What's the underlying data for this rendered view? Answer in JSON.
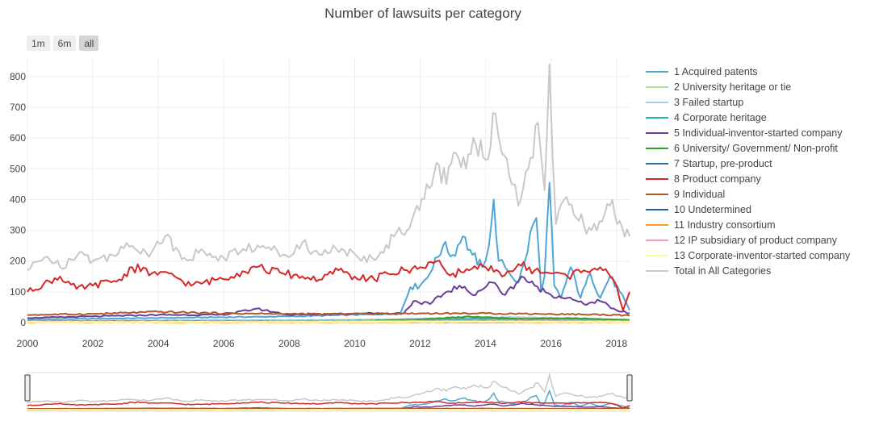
{
  "title": "Number of lawsuits per category",
  "range_buttons": [
    {
      "label": "1m",
      "active": false
    },
    {
      "label": "6m",
      "active": false
    },
    {
      "label": "all",
      "active": true
    }
  ],
  "chart_data": {
    "type": "line",
    "title": "Number of lawsuits per category",
    "xlabel": "",
    "ylabel": "",
    "x_range": [
      2000,
      2018.4
    ],
    "ylim": [
      0,
      860
    ],
    "x_ticks": [
      2000,
      2002,
      2004,
      2006,
      2008,
      2010,
      2012,
      2014,
      2016,
      2018
    ],
    "y_ticks": [
      0,
      100,
      200,
      300,
      400,
      500,
      600,
      700,
      800
    ],
    "grid": true,
    "legend_position": "right",
    "has_range_slider": true,
    "series": [
      {
        "name": "1 Acquired patents",
        "color": "#4fa6d3",
        "points": [
          [
            2000,
            10
          ],
          [
            2004,
            15
          ],
          [
            2008,
            20
          ],
          [
            2010,
            25
          ],
          [
            2011.4,
            30
          ],
          [
            2011.7,
            115
          ],
          [
            2012,
            120
          ],
          [
            2012.3,
            160
          ],
          [
            2012.7,
            250
          ],
          [
            2013,
            220
          ],
          [
            2013.3,
            280
          ],
          [
            2013.6,
            220
          ],
          [
            2013.9,
            180
          ],
          [
            2014.1,
            250
          ],
          [
            2014.25,
            400
          ],
          [
            2014.4,
            200
          ],
          [
            2014.6,
            180
          ],
          [
            2014.8,
            150
          ],
          [
            2015,
            130
          ],
          [
            2015.2,
            200
          ],
          [
            2015.45,
            320
          ],
          [
            2015.55,
            340
          ],
          [
            2015.7,
            100
          ],
          [
            2015.8,
            150
          ],
          [
            2015.95,
            455
          ],
          [
            2016.1,
            120
          ],
          [
            2016.3,
            80
          ],
          [
            2016.6,
            180
          ],
          [
            2016.9,
            80
          ],
          [
            2017.2,
            160
          ],
          [
            2017.5,
            80
          ],
          [
            2017.8,
            150
          ],
          [
            2018.1,
            100
          ],
          [
            2018.4,
            40
          ]
        ]
      },
      {
        "name": "2 University heritage or tie",
        "color": "#b2df8a",
        "points": [
          [
            2000,
            3
          ],
          [
            2005,
            4
          ],
          [
            2010,
            5
          ],
          [
            2012,
            8
          ],
          [
            2014,
            10
          ],
          [
            2016,
            8
          ],
          [
            2018.4,
            6
          ]
        ]
      },
      {
        "name": "3 Failed startup",
        "color": "#a6cee3",
        "points": [
          [
            2000,
            5
          ],
          [
            2004,
            8
          ],
          [
            2008,
            8
          ],
          [
            2011,
            10
          ],
          [
            2013,
            15
          ],
          [
            2015,
            18
          ],
          [
            2016,
            15
          ],
          [
            2018.4,
            10
          ]
        ]
      },
      {
        "name": "4 Corporate heritage",
        "color": "#26b3b3",
        "points": [
          [
            2000,
            4
          ],
          [
            2005,
            5
          ],
          [
            2010,
            6
          ],
          [
            2012,
            10
          ],
          [
            2014,
            12
          ],
          [
            2016,
            10
          ],
          [
            2018.4,
            8
          ]
        ]
      },
      {
        "name": "5 Individual-inventor-started company",
        "color": "#6a3d9a",
        "points": [
          [
            2000,
            15
          ],
          [
            2002,
            20
          ],
          [
            2004,
            25
          ],
          [
            2006,
            25
          ],
          [
            2007,
            45
          ],
          [
            2008,
            25
          ],
          [
            2010,
            30
          ],
          [
            2011.5,
            30
          ],
          [
            2011.8,
            70
          ],
          [
            2012.3,
            60
          ],
          [
            2012.8,
            100
          ],
          [
            2013.2,
            120
          ],
          [
            2013.6,
            90
          ],
          [
            2014.2,
            130
          ],
          [
            2014.6,
            90
          ],
          [
            2015.1,
            150
          ],
          [
            2015.5,
            120
          ],
          [
            2016,
            90
          ],
          [
            2016.5,
            80
          ],
          [
            2017,
            60
          ],
          [
            2017.5,
            70
          ],
          [
            2018,
            40
          ],
          [
            2018.4,
            30
          ]
        ]
      },
      {
        "name": "6 University/ Government/ Non-profit",
        "color": "#33a02c",
        "points": [
          [
            2000,
            3
          ],
          [
            2005,
            4
          ],
          [
            2010,
            5
          ],
          [
            2012,
            10
          ],
          [
            2013.5,
            20
          ],
          [
            2015,
            12
          ],
          [
            2016.5,
            15
          ],
          [
            2018.4,
            8
          ]
        ]
      },
      {
        "name": "7 Startup, pre-product",
        "color": "#2c6e9e",
        "points": [
          [
            2000,
            2
          ],
          [
            2006,
            3
          ],
          [
            2012,
            5
          ],
          [
            2016,
            6
          ],
          [
            2018.4,
            4
          ]
        ]
      },
      {
        "name": "8 Product company",
        "color": "#d62728",
        "points": [
          [
            2000,
            100
          ],
          [
            2001,
            150
          ],
          [
            2001.5,
            110
          ],
          [
            2002,
            120
          ],
          [
            2002.8,
            140
          ],
          [
            2003.2,
            180
          ],
          [
            2003.8,
            160
          ],
          [
            2004.5,
            150
          ],
          [
            2005,
            120
          ],
          [
            2005.8,
            140
          ],
          [
            2006.4,
            160
          ],
          [
            2007,
            180
          ],
          [
            2007.8,
            160
          ],
          [
            2008.4,
            150
          ],
          [
            2009,
            140
          ],
          [
            2009.5,
            170
          ],
          [
            2010,
            150
          ],
          [
            2010.6,
            140
          ],
          [
            2011,
            160
          ],
          [
            2011.6,
            170
          ],
          [
            2012,
            180
          ],
          [
            2012.5,
            200
          ],
          [
            2013,
            160
          ],
          [
            2013.5,
            170
          ],
          [
            2014,
            180
          ],
          [
            2014.5,
            150
          ],
          [
            2015,
            190
          ],
          [
            2015.5,
            170
          ],
          [
            2016,
            160
          ],
          [
            2016.5,
            150
          ],
          [
            2017,
            170
          ],
          [
            2017.5,
            180
          ],
          [
            2018,
            120
          ],
          [
            2018.2,
            40
          ],
          [
            2018.4,
            100
          ]
        ]
      },
      {
        "name": "9 Individual",
        "color": "#b15928",
        "points": [
          [
            2000,
            25
          ],
          [
            2002,
            28
          ],
          [
            2004,
            35
          ],
          [
            2006,
            30
          ],
          [
            2008,
            28
          ],
          [
            2010,
            28
          ],
          [
            2012,
            30
          ],
          [
            2014,
            30
          ],
          [
            2016,
            28
          ],
          [
            2018,
            25
          ],
          [
            2018.4,
            22
          ]
        ]
      },
      {
        "name": "10 Undetermined",
        "color": "#1f5fa0",
        "points": [
          [
            2000,
            2
          ],
          [
            2008,
            3
          ],
          [
            2012,
            4
          ],
          [
            2016,
            5
          ],
          [
            2018.4,
            3
          ]
        ]
      },
      {
        "name": "11 Industry consortium",
        "color": "#ff9a22",
        "points": [
          [
            2000,
            1
          ],
          [
            2009,
            1
          ],
          [
            2014,
            2
          ],
          [
            2018.4,
            1
          ]
        ]
      },
      {
        "name": "12 IP subsidiary of product company",
        "color": "#f4a0b0",
        "points": [
          [
            2000,
            3
          ],
          [
            2006,
            4
          ],
          [
            2012,
            6
          ],
          [
            2016,
            7
          ],
          [
            2018.4,
            5
          ]
        ]
      },
      {
        "name": "13 Corporate-inventor-started company",
        "color": "#ffff99",
        "points": [
          [
            2000,
            2
          ],
          [
            2008,
            2
          ],
          [
            2014,
            3
          ],
          [
            2018.4,
            2
          ]
        ]
      },
      {
        "name": "Total in All Categories",
        "color": "#c8c8c8",
        "points": [
          [
            2000,
            170
          ],
          [
            2000.6,
            215
          ],
          [
            2001,
            180
          ],
          [
            2001.6,
            230
          ],
          [
            2002,
            200
          ],
          [
            2002.6,
            220
          ],
          [
            2003.2,
            250
          ],
          [
            2003.8,
            230
          ],
          [
            2004.2,
            280
          ],
          [
            2004.8,
            210
          ],
          [
            2005.4,
            230
          ],
          [
            2006,
            210
          ],
          [
            2006.6,
            240
          ],
          [
            2007.2,
            250
          ],
          [
            2007.8,
            220
          ],
          [
            2008.4,
            260
          ],
          [
            2009,
            220
          ],
          [
            2009.6,
            240
          ],
          [
            2010.2,
            200
          ],
          [
            2010.8,
            230
          ],
          [
            2011.2,
            280
          ],
          [
            2011.6,
            300
          ],
          [
            2011.9,
            380
          ],
          [
            2012.2,
            450
          ],
          [
            2012.5,
            520
          ],
          [
            2012.8,
            450
          ],
          [
            2013.1,
            550
          ],
          [
            2013.4,
            500
          ],
          [
            2013.7,
            580
          ],
          [
            2014,
            530
          ],
          [
            2014.3,
            680
          ],
          [
            2014.5,
            550
          ],
          [
            2014.8,
            450
          ],
          [
            2015,
            380
          ],
          [
            2015.3,
            500
          ],
          [
            2015.6,
            650
          ],
          [
            2015.8,
            430
          ],
          [
            2015.95,
            840
          ],
          [
            2016.15,
            320
          ],
          [
            2016.4,
            400
          ],
          [
            2016.7,
            350
          ],
          [
            2017,
            320
          ],
          [
            2017.4,
            300
          ],
          [
            2017.8,
            380
          ],
          [
            2018.1,
            330
          ],
          [
            2018.4,
            280
          ]
        ]
      }
    ]
  }
}
